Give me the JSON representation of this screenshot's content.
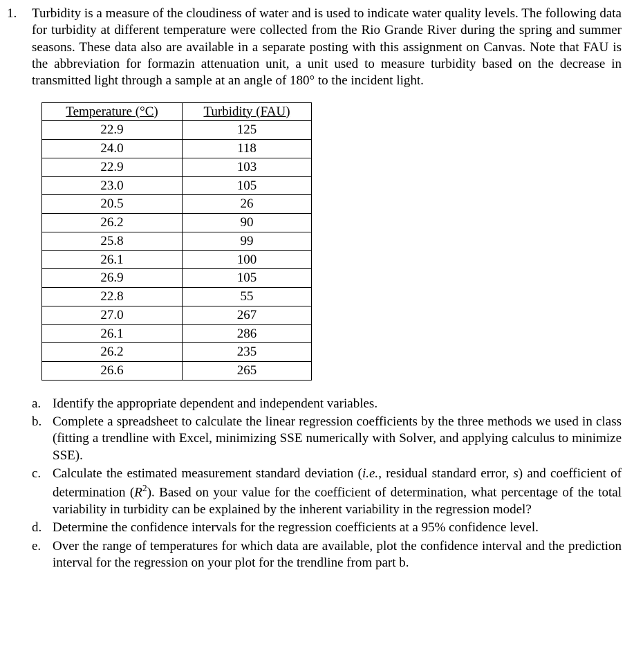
{
  "question": {
    "number": "1.",
    "intro": "Turbidity is a measure of the cloudiness of water and is used to indicate water quality levels. The following data for turbidity at different temperature were collected from the Rio Grande River during the spring and summer seasons.  These data also are available in a separate posting with this assignment on Canvas.  Note that FAU is the abbreviation for formazin attenuation unit, a unit used to measure turbidity based on the decrease in transmitted light through a sample at an angle of 180° to the incident light."
  },
  "table": {
    "header_temp": "Temperature (°C)",
    "header_turb": "Turbidity (FAU)",
    "rows": [
      {
        "temp": "22.9",
        "turb": "125"
      },
      {
        "temp": "24.0",
        "turb": "118"
      },
      {
        "temp": "22.9",
        "turb": "103"
      },
      {
        "temp": "23.0",
        "turb": "105"
      },
      {
        "temp": "20.5",
        "turb": "26"
      },
      {
        "temp": "26.2",
        "turb": "90"
      },
      {
        "temp": "25.8",
        "turb": "99"
      },
      {
        "temp": "26.1",
        "turb": "100"
      },
      {
        "temp": "26.9",
        "turb": "105"
      },
      {
        "temp": "22.8",
        "turb": "55"
      },
      {
        "temp": "27.0",
        "turb": "267"
      },
      {
        "temp": "26.1",
        "turb": "286"
      },
      {
        "temp": "26.2",
        "turb": "235"
      },
      {
        "temp": "26.6",
        "turb": "265"
      }
    ]
  },
  "subparts": {
    "a": {
      "marker": "a.",
      "text": "Identify the appropriate dependent and independent variables."
    },
    "b": {
      "marker": "b.",
      "text": "Complete a spreadsheet to calculate the linear regression coefficients by the three methods we used in class (fitting a trendline with Excel, minimizing SSE numerically with Solver, and applying calculus to minimize SSE)."
    },
    "c": {
      "marker": "c.",
      "pre": "Calculate the estimated measurement standard deviation (",
      "ie": "i.e.",
      "mid1": ", residual standard error, ",
      "s": "s",
      "mid2": ") and coefficient of determination (",
      "r": "R",
      "sup": "2",
      "post": ").  Based on your value for the coefficient of determination, what percentage of the total variability in turbidity can be explained by the inherent variability in the regression model?"
    },
    "d": {
      "marker": "d.",
      "text": "Determine the confidence intervals for the regression coefficients at a 95% confidence level."
    },
    "e": {
      "marker": "e.",
      "text": "Over the range of temperatures for which data are available, plot the confidence interval and the prediction interval for the regression on your plot for the trendline from part b."
    }
  }
}
